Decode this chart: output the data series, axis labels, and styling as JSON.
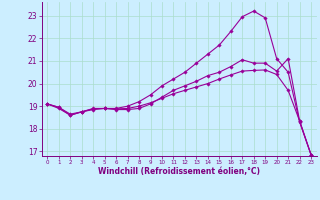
{
  "background_color": "#cceeff",
  "line_color": "#990099",
  "marker": "D",
  "markersize": 1.8,
  "linewidth": 0.8,
  "xlabel": "Windchill (Refroidissement éolien,°C)",
  "xlabel_fontsize": 5.5,
  "xtick_fontsize": 4.0,
  "ytick_fontsize": 5.5,
  "xlim": [
    -0.5,
    23.5
  ],
  "ylim": [
    16.8,
    23.6
  ],
  "yticks": [
    17,
    18,
    19,
    20,
    21,
    22,
    23
  ],
  "xticks": [
    0,
    1,
    2,
    3,
    4,
    5,
    6,
    7,
    8,
    9,
    10,
    11,
    12,
    13,
    14,
    15,
    16,
    17,
    18,
    19,
    20,
    21,
    22,
    23
  ],
  "grid_color": "#aaddcc",
  "curve1_x": [
    0,
    1,
    2,
    3,
    4,
    5,
    6,
    7,
    8,
    9,
    10,
    11,
    12,
    13,
    14,
    15,
    16,
    17,
    18,
    19,
    20,
    21,
    22,
    23
  ],
  "curve1_y": [
    19.1,
    18.9,
    18.6,
    18.75,
    18.9,
    18.9,
    18.9,
    19.0,
    19.2,
    19.5,
    19.9,
    20.2,
    20.5,
    20.9,
    21.3,
    21.7,
    22.3,
    22.95,
    23.2,
    22.9,
    21.1,
    20.5,
    18.3,
    16.85
  ],
  "curve2_x": [
    0,
    1,
    2,
    3,
    4,
    5,
    6,
    7,
    8,
    9,
    10,
    11,
    12,
    13,
    14,
    15,
    16,
    17,
    18,
    19,
    20,
    21,
    22,
    23
  ],
  "curve2_y": [
    19.1,
    18.95,
    18.6,
    18.75,
    18.85,
    18.9,
    18.85,
    18.85,
    18.9,
    19.1,
    19.4,
    19.7,
    19.9,
    20.1,
    20.35,
    20.5,
    20.75,
    21.05,
    20.9,
    20.9,
    20.55,
    21.1,
    18.35,
    16.85
  ],
  "curve3_x": [
    0,
    1,
    2,
    3,
    4,
    5,
    6,
    7,
    8,
    9,
    10,
    11,
    12,
    13,
    14,
    15,
    16,
    17,
    18,
    19,
    20,
    21,
    22,
    23
  ],
  "curve3_y": [
    19.1,
    18.95,
    18.65,
    18.75,
    18.88,
    18.9,
    18.88,
    18.9,
    19.0,
    19.15,
    19.35,
    19.55,
    19.7,
    19.85,
    20.0,
    20.2,
    20.38,
    20.55,
    20.58,
    20.6,
    20.4,
    19.7,
    18.35,
    16.85
  ]
}
